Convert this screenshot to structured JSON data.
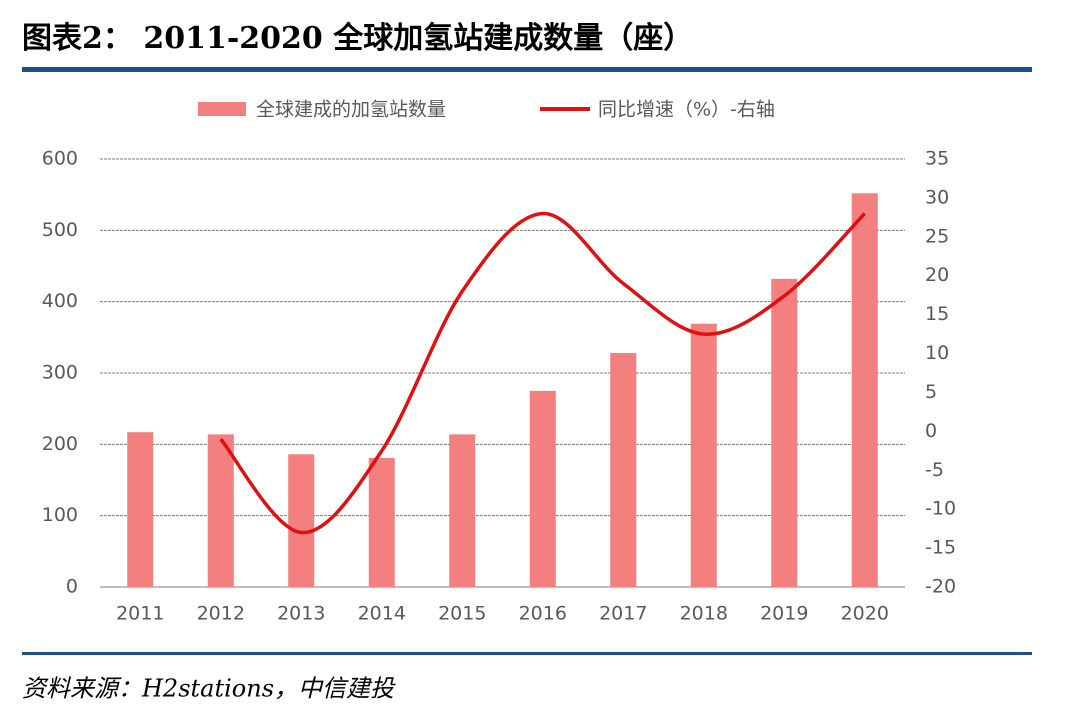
{
  "chart_data": {
    "type": "bar_line",
    "title": "图表2：  2011-2020 全球加氢站建成数量（座）",
    "source": "资料来源：H2stations，中信建投",
    "categories": [
      "2011",
      "2012",
      "2013",
      "2014",
      "2015",
      "2016",
      "2017",
      "2018",
      "2019",
      "2020"
    ],
    "series": [
      {
        "name": "全球建成的加氢站数量",
        "type": "bar",
        "color": "#f47f7f",
        "values": [
          217,
          214,
          186,
          181,
          214,
          275,
          328,
          369,
          432,
          552
        ]
      },
      {
        "name": "同比增速（%）-右轴",
        "type": "line",
        "axis": "y2",
        "color": "#e01010",
        "values": [
          null,
          -1,
          -13,
          -2.5,
          18,
          28,
          19,
          12.5,
          17.4,
          28
        ]
      }
    ],
    "ylim": [
      0,
      600
    ],
    "yticks": [
      0,
      100,
      200,
      300,
      400,
      500,
      600
    ],
    "y2lim": [
      -20,
      35
    ],
    "y2ticks": [
      -20,
      -15,
      -10,
      -5,
      0,
      5,
      10,
      15,
      20,
      25,
      30,
      35
    ],
    "grid": true,
    "legend": "top"
  }
}
